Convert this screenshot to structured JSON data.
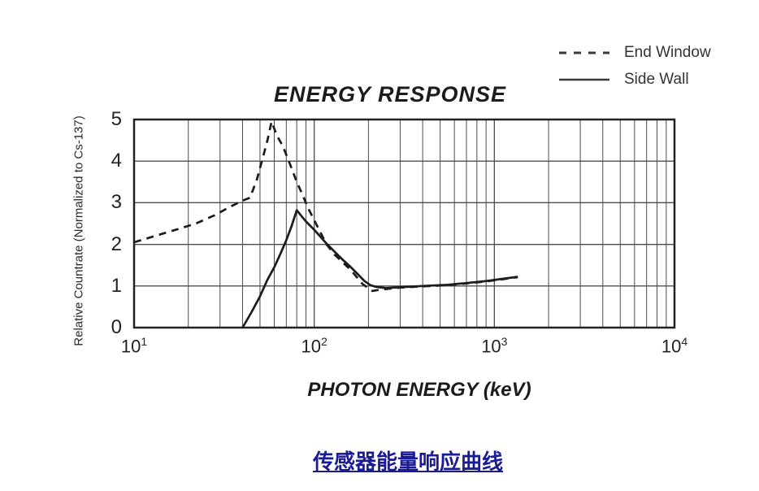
{
  "caption": {
    "text": "传感器能量响应曲线",
    "color": "#1b1b96"
  },
  "chart_data": {
    "type": "line",
    "title": "ENERGY RESPONSE",
    "xlabel": "PHOTON ENERGY (keV)",
    "ylabel": "Relative Countrate (Normalized to Cs-137)",
    "x_scale": "log",
    "xlim": [
      10,
      10000
    ],
    "ylim": [
      0,
      5
    ],
    "x_ticks": [
      {
        "value": 10,
        "base": "10",
        "sup": "1"
      },
      {
        "value": 100,
        "base": "10",
        "sup": "2"
      },
      {
        "value": 1000,
        "base": "10",
        "sup": "3"
      },
      {
        "value": 10000,
        "base": "10",
        "sup": "4"
      }
    ],
    "y_ticks": [
      0,
      1,
      2,
      3,
      4,
      5
    ],
    "grid": "on (log minor vertical lines, unit horizontal lines)",
    "legend_position": "top-right outside plot",
    "colors": {
      "curve": "#1c1c1c",
      "grid": "#4d4d4d",
      "border": "#222222"
    },
    "series": [
      {
        "name": "End Window",
        "line": "dashed",
        "points": [
          [
            10,
            2.05
          ],
          [
            13,
            2.2
          ],
          [
            17,
            2.35
          ],
          [
            22,
            2.5
          ],
          [
            28,
            2.7
          ],
          [
            34,
            2.9
          ],
          [
            40,
            3.05
          ],
          [
            44,
            3.12
          ],
          [
            48,
            3.55
          ],
          [
            52,
            4.1
          ],
          [
            55,
            4.5
          ],
          [
            58,
            4.95
          ],
          [
            62,
            4.62
          ],
          [
            67,
            4.36
          ],
          [
            73,
            3.95
          ],
          [
            80,
            3.5
          ],
          [
            86,
            3.2
          ],
          [
            93,
            2.85
          ],
          [
            105,
            2.4
          ],
          [
            117,
            2.0
          ],
          [
            130,
            1.75
          ],
          [
            160,
            1.38
          ],
          [
            185,
            1.05
          ],
          [
            210,
            0.88
          ],
          [
            240,
            0.92
          ],
          [
            300,
            0.96
          ],
          [
            400,
            0.99
          ],
          [
            550,
            1.02
          ],
          [
            700,
            1.06
          ],
          [
            900,
            1.11
          ],
          [
            1100,
            1.16
          ],
          [
            1350,
            1.21
          ]
        ]
      },
      {
        "name": "Side Wall",
        "line": "solid",
        "points": [
          [
            40,
            0
          ],
          [
            45,
            0.38
          ],
          [
            50,
            0.75
          ],
          [
            55,
            1.15
          ],
          [
            60,
            1.45
          ],
          [
            65,
            1.78
          ],
          [
            70,
            2.1
          ],
          [
            75,
            2.45
          ],
          [
            80,
            2.82
          ],
          [
            85,
            2.68
          ],
          [
            90,
            2.55
          ],
          [
            100,
            2.35
          ],
          [
            110,
            2.15
          ],
          [
            117,
            2.02
          ],
          [
            130,
            1.82
          ],
          [
            145,
            1.62
          ],
          [
            160,
            1.45
          ],
          [
            175,
            1.28
          ],
          [
            190,
            1.12
          ],
          [
            205,
            1.02
          ],
          [
            220,
            0.98
          ],
          [
            250,
            0.95
          ],
          [
            300,
            0.97
          ],
          [
            400,
            1.0
          ],
          [
            550,
            1.03
          ],
          [
            700,
            1.07
          ],
          [
            900,
            1.12
          ],
          [
            1100,
            1.17
          ],
          [
            1350,
            1.22
          ]
        ]
      }
    ]
  }
}
